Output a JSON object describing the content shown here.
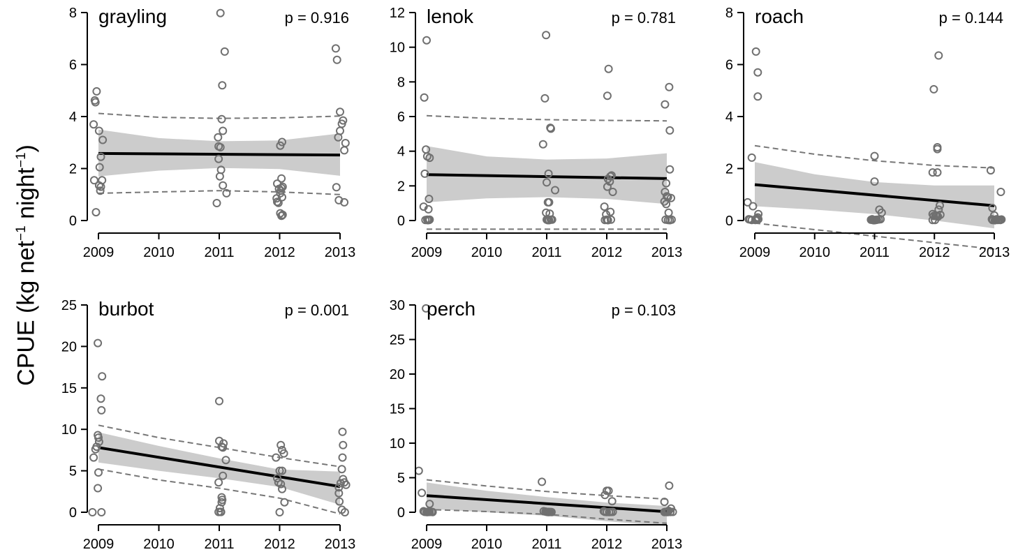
{
  "figure": {
    "ylabel": {
      "main": "CPUE (kg net",
      "sup1": "−1",
      "mid": " night",
      "sup2": "−1",
      "end": ")"
    }
  },
  "chart_data": [
    {
      "type": "scatter",
      "title": "grayling",
      "annotation": "p = 0.916",
      "xlim": [
        2009,
        2013
      ],
      "ylim": [
        0,
        8
      ],
      "x_ticks": [
        2009,
        2010,
        2011,
        2012,
        2013
      ],
      "y_ticks": [
        0,
        2,
        4,
        6,
        8
      ],
      "grid": false,
      "points": {
        "x": [
          2008.95,
          2008.94,
          2008.97,
          2008.92,
          2009.01,
          2009.07,
          2009.04,
          2009.02,
          2008.93,
          2009.01,
          2009.06,
          2009.04,
          2009.03,
          2008.96,
          2011.02,
          2011.09,
          2011.05,
          2011.04,
          2011.06,
          2010.98,
          2010.99,
          2011.02,
          2010.99,
          2011.03,
          2011.01,
          2011.06,
          2011.12,
          2010.96,
          2012.04,
          2012.01,
          2012.03,
          2011.96,
          2012.05,
          2012.03,
          2011.99,
          2012.02,
          2012.01,
          2012.04,
          2011.95,
          2011.96,
          2011.98,
          2012.01,
          2012.05,
          2012.04,
          2012.03,
          2012.93,
          2012.95,
          2013.0,
          2013.05,
          2013.03,
          2013.0,
          2012.97,
          2013.09,
          2013.07,
          2012.94,
          2012.98,
          2013.07
        ],
        "y": [
          4.55,
          4.62,
          4.97,
          3.7,
          3.45,
          3.1,
          2.45,
          2.05,
          1.55,
          1.35,
          1.55,
          1.3,
          1.15,
          0.32,
          7.98,
          6.5,
          5.2,
          3.9,
          3.45,
          3.2,
          2.85,
          2.82,
          2.37,
          1.95,
          1.7,
          1.35,
          1.05,
          0.67,
          3.02,
          2.88,
          1.62,
          1.42,
          1.3,
          1.25,
          1.22,
          1.15,
          1.05,
          0.9,
          0.85,
          0.72,
          0.68,
          0.28,
          0.22,
          0.2,
          0.18,
          6.62,
          6.18,
          4.18,
          3.85,
          3.72,
          3.45,
          3.2,
          2.98,
          2.7,
          1.28,
          0.78,
          0.7
        ]
      },
      "fit": {
        "x": [
          2009,
          2013
        ],
        "y": [
          2.58,
          2.52
        ]
      },
      "ci": {
        "x": [
          2009,
          2010,
          2011,
          2012,
          2013
        ],
        "lower": [
          1.7,
          1.92,
          2.02,
          1.98,
          1.72
        ],
        "upper": [
          3.5,
          3.17,
          3.05,
          3.08,
          3.35
        ]
      },
      "pi": {
        "x": [
          2009,
          2010,
          2011,
          2012,
          2013
        ],
        "lower": [
          1.05,
          1.1,
          1.15,
          1.1,
          1.0
        ],
        "upper": [
          4.12,
          3.97,
          3.93,
          3.95,
          4.02
        ]
      }
    },
    {
      "type": "scatter",
      "title": "lenok",
      "annotation": "p = 0.781",
      "xlim": [
        2009,
        2013
      ],
      "ylim": [
        0,
        12
      ],
      "x_ticks": [
        2009,
        2010,
        2011,
        2012,
        2013
      ],
      "y_ticks": [
        0,
        2,
        4,
        6,
        8,
        10,
        12
      ],
      "grid": false,
      "points": {
        "x": [
          2009.0,
          2008.96,
          2008.99,
          2009.01,
          2009.05,
          2008.97,
          2009.04,
          2008.95,
          2009.03,
          2009.05,
          2009.01,
          2008.98,
          2009.02,
          2009.04,
          2010.99,
          2010.97,
          2010.94,
          2011.06,
          2011.07,
          2011.03,
          2011.0,
          2011.02,
          2011.14,
          2011.04,
          2010.99,
          2011.05,
          2011.07,
          2011.0,
          2011.09,
          2011.02,
          2011.04,
          2011.03,
          2012.03,
          2012.01,
          2012.08,
          2012.06,
          2012.02,
          2012.05,
          2012.1,
          2012.01,
          2011.96,
          2012.06,
          2011.99,
          2012.0,
          2012.07,
          2012.02,
          2011.97,
          2013.04,
          2012.97,
          2013.05,
          2013.05,
          2012.99,
          2012.97,
          2013.0,
          2013.02,
          2013.07,
          2012.96,
          2012.99,
          2013.03,
          2013.08,
          2012.98,
          2013.05,
          2013.02
        ],
        "y": [
          10.4,
          7.1,
          4.1,
          3.7,
          3.62,
          2.7,
          1.25,
          0.8,
          0.65,
          0.05,
          0.05,
          0.03,
          0.02,
          0.03,
          10.7,
          7.05,
          4.4,
          5.35,
          5.3,
          2.7,
          2.2,
          1.05,
          1.75,
          1.05,
          0.45,
          0.4,
          0.05,
          0.05,
          0.05,
          0.02,
          0.02,
          0.05,
          8.75,
          7.2,
          2.6,
          2.55,
          2.4,
          2.25,
          1.65,
          1.95,
          0.8,
          0.5,
          0.35,
          0.05,
          0.05,
          0.02,
          0.03,
          7.7,
          6.7,
          5.2,
          2.95,
          2.15,
          1.65,
          1.4,
          1.35,
          1.3,
          1.1,
          0.95,
          0.45,
          0.05,
          0.05,
          0.02,
          0.03
        ]
      },
      "fit": {
        "x": [
          2009,
          2013
        ],
        "y": [
          2.65,
          2.42
        ]
      },
      "ci": {
        "x": [
          2009,
          2010,
          2011,
          2012,
          2013
        ],
        "lower": [
          1.05,
          1.28,
          1.35,
          1.25,
          0.95
        ],
        "upper": [
          4.3,
          3.7,
          3.52,
          3.58,
          3.88
        ]
      },
      "pi": {
        "x": [
          2009,
          2010,
          2011,
          2012,
          2013
        ],
        "lower": [
          -0.5,
          -0.5,
          -0.5,
          -0.5,
          -0.5
        ],
        "upper": [
          6.05,
          5.9,
          5.82,
          5.78,
          5.75
        ]
      }
    },
    {
      "type": "scatter",
      "title": "roach",
      "annotation": "p = 0.144",
      "xlim": [
        2009,
        2013
      ],
      "ylim": [
        0,
        8
      ],
      "x_ticks": [
        2009,
        2010,
        2011,
        2012,
        2013
      ],
      "y_ticks": [
        0,
        2,
        4,
        6,
        8
      ],
      "grid": false,
      "points": {
        "x": [
          2009.02,
          2009.05,
          2009.05,
          2008.95,
          2008.88,
          2008.97,
          2009.06,
          2009.05,
          2009.03,
          2008.9,
          2008.92,
          2008.95,
          2009.01,
          2009.03,
          2009.06,
          2011.0,
          2011.0,
          2011.08,
          2011.12,
          2010.96,
          2010.94,
          2010.97,
          2010.99,
          2011.02,
          2011.04,
          2011.07,
          2011.1,
          2011.01,
          2011.03,
          2012.07,
          2011.99,
          2012.05,
          2012.05,
          2011.97,
          2012.05,
          2012.09,
          2012.07,
          2012.1,
          2011.97,
          2012.02,
          2011.99,
          2012.04,
          2012.06,
          2011.97,
          2012.01,
          2012.94,
          2013.11,
          2012.97,
          2013.0,
          2012.96,
          2013.03,
          2013.06,
          2013.09,
          2013.12,
          2012.98,
          2013.01,
          2013.04,
          2013.07,
          2013.1,
          2012.97
        ],
        "y": [
          6.5,
          5.7,
          4.77,
          2.42,
          0.7,
          0.55,
          0.25,
          0.12,
          0.08,
          0.05,
          0.04,
          0.02,
          0.02,
          0.03,
          0.05,
          2.48,
          1.5,
          0.42,
          0.3,
          0.05,
          0.03,
          0.02,
          0.01,
          0.02,
          0.03,
          0.04,
          0.05,
          0.02,
          0.03,
          6.35,
          5.05,
          2.82,
          2.75,
          1.85,
          1.85,
          0.58,
          0.42,
          0.22,
          0.25,
          0.2,
          0.18,
          0.18,
          0.15,
          0.02,
          0.02,
          1.93,
          1.1,
          0.48,
          0.2,
          0.05,
          0.03,
          0.02,
          0.03,
          0.04,
          0.02,
          0.01,
          0.05,
          0.03,
          0.02,
          0.02
        ]
      },
      "fit": {
        "x": [
          2009,
          2013
        ],
        "y": [
          1.38,
          0.57
        ]
      },
      "ci": {
        "x": [
          2009,
          2010,
          2011,
          2012,
          2013
        ],
        "lower": [
          0.55,
          0.42,
          0.25,
          0.0,
          -0.3
        ],
        "upper": [
          2.25,
          1.78,
          1.48,
          1.35,
          1.35
        ]
      },
      "pi": {
        "x": [
          2009,
          2010,
          2011,
          2012,
          2013
        ],
        "lower": [
          -0.1,
          -0.35,
          -0.6,
          -0.85,
          -1.1
        ],
        "upper": [
          2.88,
          2.55,
          2.3,
          2.12,
          2.02
        ]
      }
    },
    {
      "type": "scatter",
      "title": "burbot",
      "annotation": "p = 0.001",
      "xlim": [
        2009,
        2013
      ],
      "ylim": [
        0,
        25
      ],
      "x_ticks": [
        2009,
        2010,
        2011,
        2012,
        2013
      ],
      "y_ticks": [
        0,
        5,
        10,
        15,
        20,
        25
      ],
      "grid": false,
      "points": {
        "x": [
          2008.99,
          2009.06,
          2009.04,
          2009.05,
          2008.99,
          2009.0,
          2009.01,
          2008.97,
          2008.95,
          2008.92,
          2009.0,
          2008.99,
          2008.9,
          2009.05,
          2011.0,
          2011.0,
          2011.07,
          2011.06,
          2011.04,
          2011.11,
          2011.06,
          2010.99,
          2011.04,
          2011.05,
          2011.04,
          2011.01,
          2011.02,
          2010.99,
          2011.03,
          2012.02,
          2012.04,
          2012.07,
          2011.94,
          2011.96,
          2012.0,
          2012.04,
          2011.98,
          2012.02,
          2012.04,
          2012.08,
          2012.0,
          2013.04,
          2013.05,
          2013.04,
          2013.03,
          2013.05,
          2013.01,
          2013.07,
          2013.1,
          2012.98,
          2012.98,
          2012.99,
          2013.03,
          2013.08
        ],
        "y": [
          20.4,
          16.4,
          13.7,
          12.3,
          9.3,
          9.0,
          8.5,
          7.9,
          7.6,
          6.6,
          4.8,
          2.9,
          0.0,
          0.0,
          13.4,
          8.6,
          8.3,
          7.8,
          7.9,
          6.3,
          4.4,
          3.6,
          1.8,
          1.5,
          1.2,
          0.5,
          0.05,
          0.03,
          0.03,
          8.1,
          7.5,
          7.1,
          6.6,
          4.1,
          5.0,
          5.0,
          3.6,
          3.4,
          2.8,
          1.2,
          0.0,
          9.7,
          8.1,
          6.6,
          5.2,
          4.0,
          3.5,
          3.6,
          3.3,
          3.0,
          2.3,
          1.3,
          0.3,
          0.0
        ]
      },
      "fit": {
        "x": [
          2009,
          2013
        ],
        "y": [
          7.8,
          3.1
        ]
      },
      "ci": {
        "x": [
          2009,
          2010,
          2011,
          2012,
          2013
        ],
        "lower": [
          6.0,
          5.0,
          4.1,
          3.05,
          0.9
        ],
        "upper": [
          9.65,
          8.0,
          6.5,
          5.15,
          4.9
        ]
      },
      "pi": {
        "x": [
          2009,
          2010,
          2011,
          2012,
          2013
        ],
        "lower": [
          5.2,
          3.9,
          2.9,
          1.7,
          -0.2
        ],
        "upper": [
          10.5,
          9.0,
          7.8,
          6.6,
          5.5
        ]
      }
    },
    {
      "type": "scatter",
      "title": "perch",
      "annotation": "p = 0.103",
      "xlim": [
        2009,
        2013
      ],
      "ylim": [
        0,
        30
      ],
      "x_ticks": [
        2009,
        2010,
        2011,
        2012,
        2013
      ],
      "y_ticks": [
        0,
        5,
        10,
        15,
        20,
        25,
        30
      ],
      "grid": false,
      "points": {
        "x": [
          2008.99,
          2008.87,
          2008.92,
          2009.05,
          2008.95,
          2008.97,
          2009.0,
          2009.02,
          2009.05,
          2009.08,
          2009.1,
          2009.03,
          2010.92,
          2010.95,
          2010.98,
          2011.0,
          2011.02,
          2011.04,
          2011.06,
          2011.08,
          2011.03,
          2012.0,
          2011.97,
          2012.03,
          2012.09,
          2011.95,
          2011.97,
          2012.0,
          2012.04,
          2012.07,
          2012.1,
          2013.04,
          2012.96,
          2013.07,
          2013.03,
          2012.98,
          2013.0,
          2013.02,
          2013.06,
          2013.1,
          2012.96
        ],
        "y": [
          29.5,
          6.0,
          2.8,
          1.2,
          0.15,
          0.05,
          0.03,
          0.02,
          0.04,
          0.05,
          0.03,
          0.05,
          4.4,
          0.15,
          0.1,
          0.05,
          0.03,
          0.02,
          0.04,
          0.03,
          0.05,
          3.1,
          2.5,
          3.1,
          1.6,
          0.15,
          0.05,
          0.03,
          0.02,
          0.04,
          0.05,
          3.85,
          1.5,
          0.55,
          0.2,
          0.05,
          0.03,
          0.02,
          0.04,
          0.05,
          0.03
        ]
      },
      "fit": {
        "x": [
          2009,
          2013
        ],
        "y": [
          2.4,
          0.08
        ]
      },
      "ci": {
        "x": [
          2009,
          2010,
          2011,
          2012,
          2013
        ],
        "lower": [
          0.5,
          0.0,
          -0.5,
          -1.3,
          -2.0
        ],
        "upper": [
          4.3,
          3.1,
          2.2,
          1.4,
          0.9
        ]
      },
      "pi": {
        "x": [
          2009,
          2010,
          2011,
          2012,
          2013
        ],
        "lower": [
          0.4,
          0.1,
          -0.3,
          -1.0,
          -1.6
        ],
        "upper": [
          4.7,
          3.8,
          3.0,
          2.4,
          1.9
        ]
      }
    }
  ]
}
